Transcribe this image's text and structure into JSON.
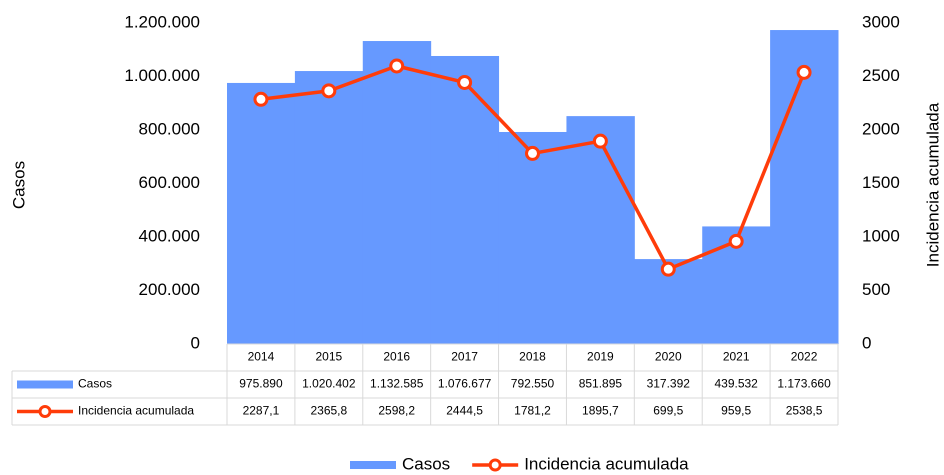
{
  "chart_data": {
    "type": "bar",
    "categories": [
      "2014",
      "2015",
      "2016",
      "2017",
      "2018",
      "2019",
      "2020",
      "2021",
      "2022"
    ],
    "series": [
      {
        "name": "Casos",
        "type": "bar",
        "color": "#6699ff",
        "values": [
          975890,
          1020402,
          1132585,
          1076677,
          792550,
          851895,
          317392,
          439532,
          1173660
        ],
        "value_labels": [
          "975.890",
          "1.020.402",
          "1.132.585",
          "1.076.677",
          "792.550",
          "851.895",
          "317.392",
          "439.532",
          "1.173.660"
        ]
      },
      {
        "name": "Incidencia acumulada",
        "type": "line",
        "axis": "y2",
        "color": "#ff3c0a",
        "values": [
          2287.1,
          2365.8,
          2598.2,
          2444.5,
          1781.2,
          1895.7,
          699.5,
          959.5,
          2538.5
        ],
        "value_labels": [
          "2287,1",
          "2365,8",
          "2598,2",
          "2444,5",
          "1781,2",
          "1895,7",
          "699,5",
          "959,5",
          "2538,5"
        ]
      }
    ],
    "ylabel": "Casos",
    "y2label": "Incidencia acumulada",
    "ylim": [
      0,
      1200000
    ],
    "yticks": [
      0,
      {
        "value": 200000,
        "label": "200.000"
      },
      {
        "value": 400000,
        "label": "400.000"
      },
      {
        "value": 600000,
        "label": "600.000"
      },
      {
        "value": 800000,
        "label": "800.000"
      },
      {
        "value": 1000000,
        "label": "1.000.000"
      },
      {
        "value": 1200000,
        "label": "1.200.000"
      }
    ],
    "y2lim": [
      0,
      3000
    ],
    "y2ticks": [
      0,
      500,
      1000,
      1500,
      2000,
      2500,
      3000
    ],
    "grid": false,
    "legend": "bottom"
  }
}
